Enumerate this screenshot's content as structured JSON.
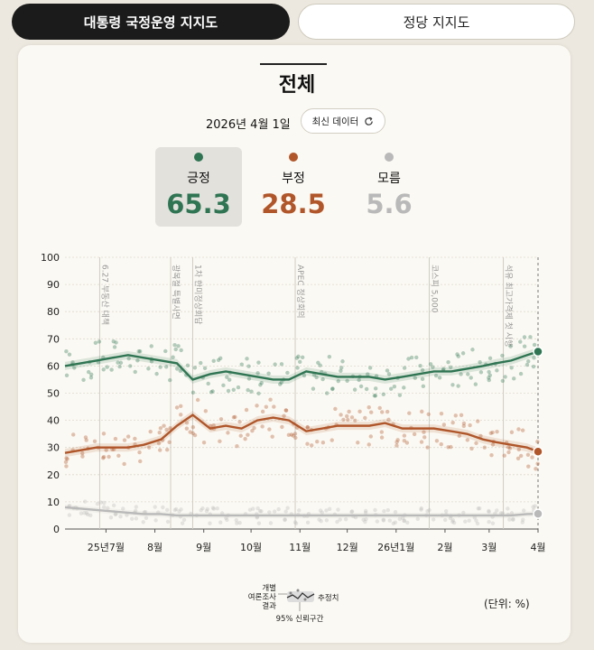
{
  "tabs": {
    "approval": "대통령 국정운영 지지도",
    "party": "정당 지지도"
  },
  "title": "전체",
  "date": "2026년 4월 1일",
  "refresh_label": "최신 데이터",
  "summary": [
    {
      "label": "긍정",
      "value": "65.3",
      "color": "#2f7553"
    },
    {
      "label": "부정",
      "value": "28.5",
      "color": "#b0562a"
    },
    {
      "label": "모름",
      "value": "5.6",
      "color": "#b9b9b9"
    }
  ],
  "legend": {
    "individual": "개별\n여론조사\n결과",
    "estimate": "추정치",
    "ci": "95% 신뢰구간"
  },
  "unit_label": "(단위: %)",
  "chart_data": {
    "type": "line",
    "ylim": [
      0,
      100
    ],
    "yticks": [
      0,
      10,
      20,
      30,
      40,
      50,
      60,
      70,
      80,
      90,
      100
    ],
    "xlim": [
      "2025-06-05",
      "2026-04-01"
    ],
    "xticks": [
      {
        "date": "2025-07-01",
        "label": "25년7월"
      },
      {
        "date": "2025-08-01",
        "label": "8월"
      },
      {
        "date": "2025-09-01",
        "label": "9월"
      },
      {
        "date": "2025-10-01",
        "label": "10월"
      },
      {
        "date": "2025-11-01",
        "label": "11월"
      },
      {
        "date": "2025-12-01",
        "label": "12월"
      },
      {
        "date": "2026-01-01",
        "label": "26년1월"
      },
      {
        "date": "2026-02-01",
        "label": "2월"
      },
      {
        "date": "2026-03-01",
        "label": "3월"
      },
      {
        "date": "2026-04-01",
        "label": "4월"
      }
    ],
    "events": [
      {
        "date": "2025-06-27",
        "label": "6.27 부동산 대책"
      },
      {
        "date": "2025-08-11",
        "label": "광복절 특별사면"
      },
      {
        "date": "2025-08-25",
        "label": "1차 한미정상회담"
      },
      {
        "date": "2025-10-29",
        "label": "APEC 정상회의"
      },
      {
        "date": "2026-01-22",
        "label": "코스피 5,000"
      },
      {
        "date": "2026-03-10",
        "label": "석유 최고가격제 첫 시행"
      }
    ],
    "series": [
      {
        "name": "긍정",
        "color": "#2f7553",
        "x": [
          "2025-06-05",
          "2025-06-15",
          "2025-06-25",
          "2025-07-05",
          "2025-07-15",
          "2025-07-25",
          "2025-08-05",
          "2025-08-15",
          "2025-08-25",
          "2025-09-05",
          "2025-09-15",
          "2025-09-25",
          "2025-10-05",
          "2025-10-15",
          "2025-10-25",
          "2025-11-05",
          "2025-11-15",
          "2025-11-25",
          "2025-12-05",
          "2025-12-15",
          "2025-12-25",
          "2026-01-05",
          "2026-01-15",
          "2026-01-25",
          "2026-02-05",
          "2026-02-15",
          "2026-02-25",
          "2026-03-05",
          "2026-03-15",
          "2026-03-25",
          "2026-04-01"
        ],
        "values": [
          60,
          61,
          62,
          63,
          64,
          63,
          62,
          61,
          55,
          57,
          58,
          57,
          56,
          55,
          55,
          58,
          57,
          56,
          56,
          56,
          55,
          56,
          57,
          58,
          58,
          59,
          60,
          61,
          62,
          64,
          65.3
        ]
      },
      {
        "name": "부정",
        "color": "#b0562a",
        "x": [
          "2025-06-05",
          "2025-06-15",
          "2025-06-25",
          "2025-07-05",
          "2025-07-15",
          "2025-07-25",
          "2025-08-05",
          "2025-08-15",
          "2025-08-25",
          "2025-09-05",
          "2025-09-15",
          "2025-09-25",
          "2025-10-05",
          "2025-10-15",
          "2025-10-25",
          "2025-11-05",
          "2025-11-15",
          "2025-11-25",
          "2025-12-05",
          "2025-12-15",
          "2025-12-25",
          "2026-01-05",
          "2026-01-15",
          "2026-01-25",
          "2026-02-05",
          "2026-02-15",
          "2026-02-25",
          "2026-03-05",
          "2026-03-15",
          "2026-03-25",
          "2026-04-01"
        ],
        "values": [
          28,
          29,
          30,
          30,
          30,
          31,
          33,
          38,
          42,
          37,
          38,
          37,
          40,
          41,
          40,
          36,
          37,
          38,
          38,
          38,
          39,
          37,
          37,
          37,
          36,
          35,
          33,
          32,
          31,
          30,
          28.5
        ]
      },
      {
        "name": "모름",
        "color": "#b9b9b9",
        "x": [
          "2025-06-05",
          "2025-06-15",
          "2025-06-25",
          "2025-07-05",
          "2025-07-15",
          "2025-07-25",
          "2025-08-05",
          "2025-08-15",
          "2025-08-25",
          "2025-09-05",
          "2025-09-15",
          "2025-09-25",
          "2025-10-05",
          "2025-10-15",
          "2025-10-25",
          "2025-11-05",
          "2025-11-15",
          "2025-11-25",
          "2025-12-05",
          "2025-12-15",
          "2025-12-25",
          "2026-01-05",
          "2026-01-15",
          "2026-01-25",
          "2026-02-05",
          "2026-02-15",
          "2026-02-25",
          "2026-03-05",
          "2026-03-15",
          "2026-03-25",
          "2026-04-01"
        ],
        "values": [
          8,
          7.5,
          7,
          6.5,
          6,
          5.5,
          5.5,
          5,
          5,
          5,
          5,
          5,
          5,
          5,
          5,
          5,
          5,
          5,
          5,
          5,
          5,
          5,
          5,
          5,
          5,
          5,
          5,
          5,
          5,
          5.5,
          5.6
        ]
      }
    ]
  }
}
